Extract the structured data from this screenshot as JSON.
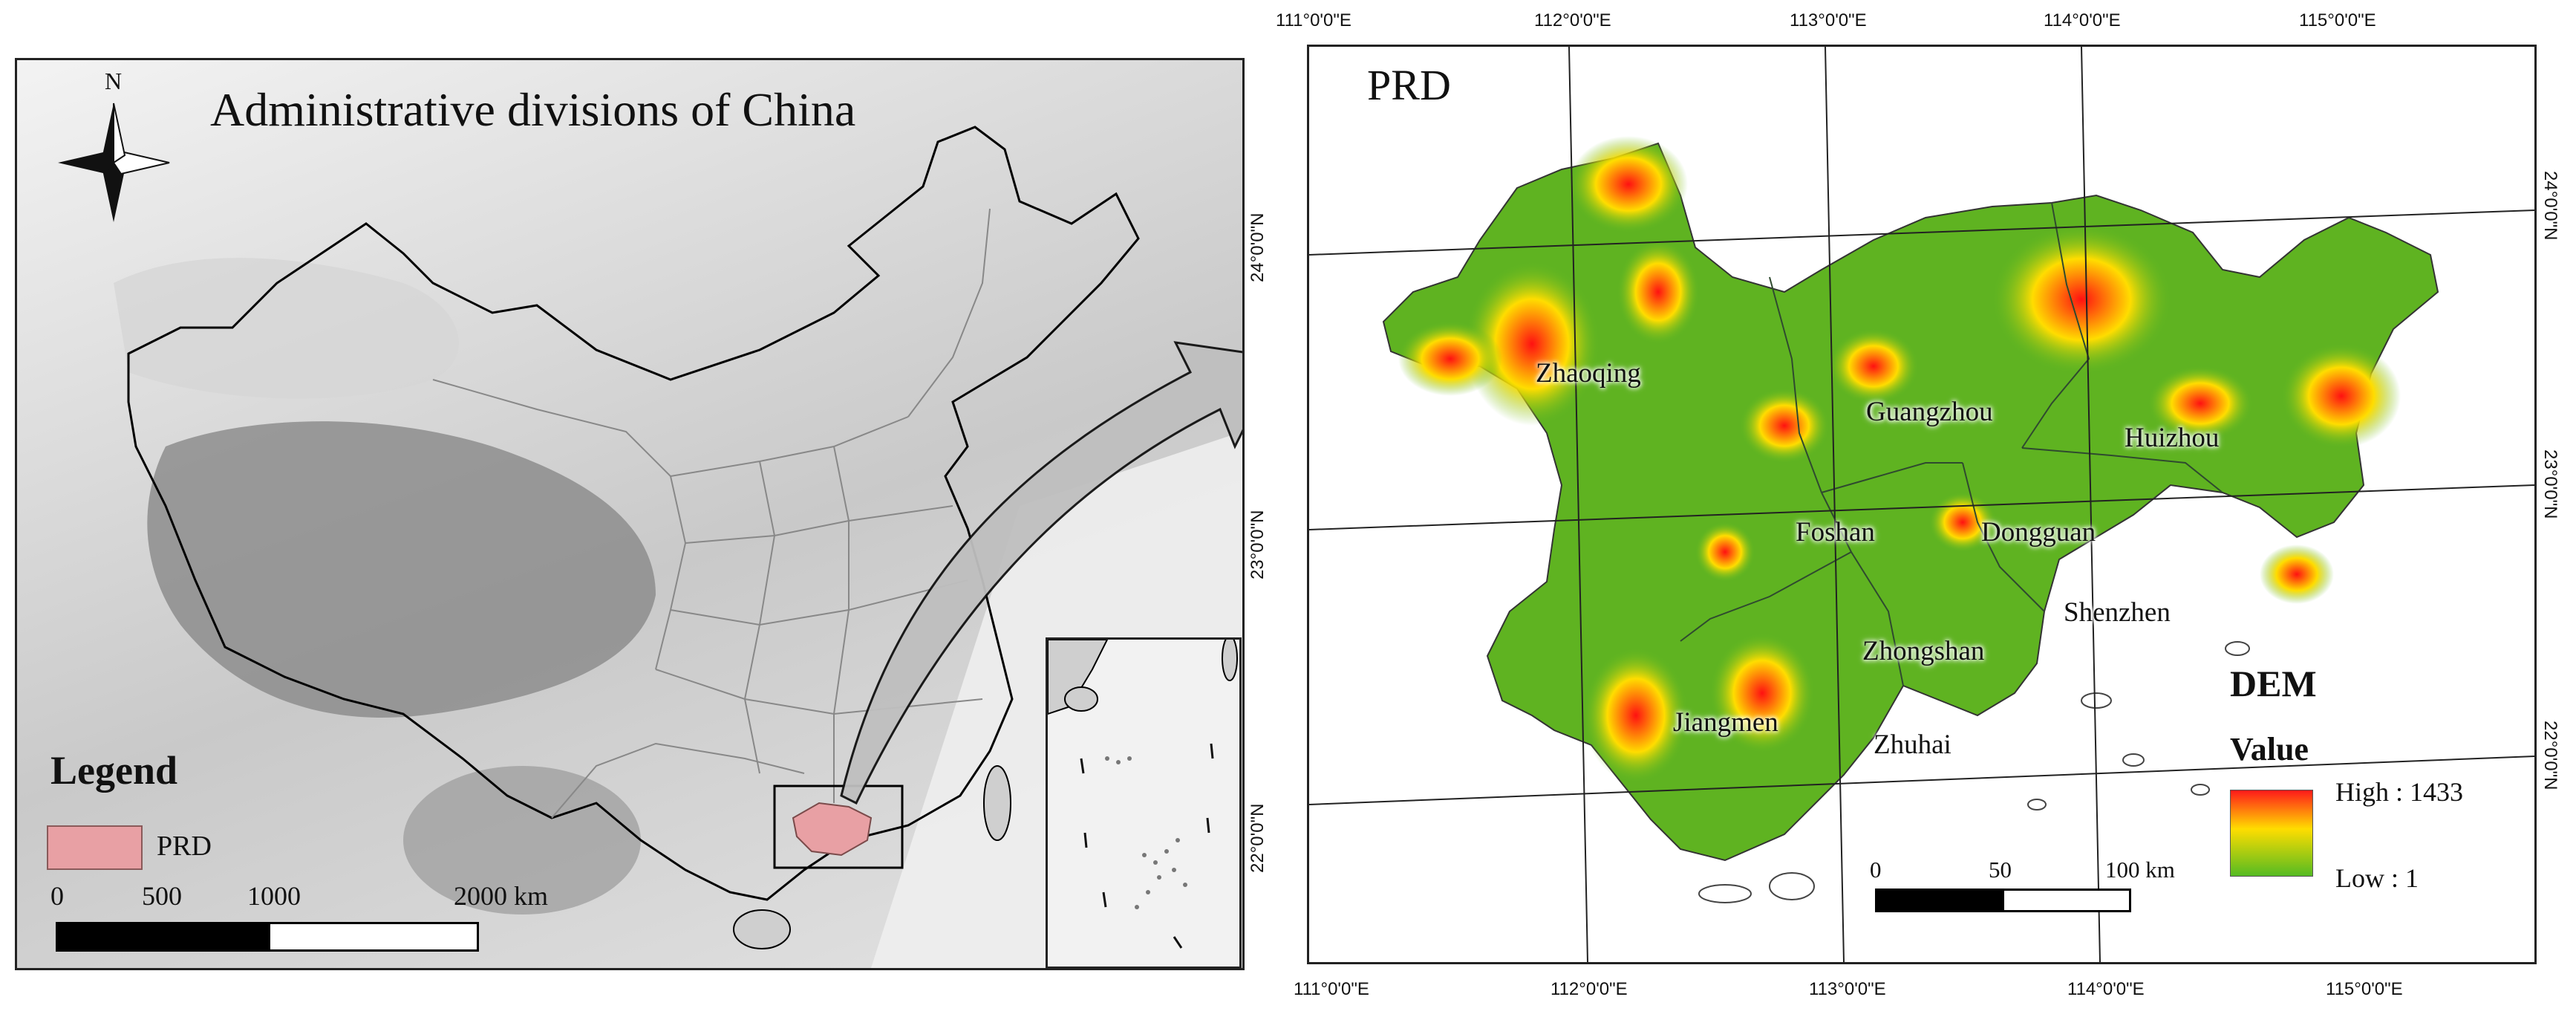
{
  "left_map": {
    "title": "Administrative divisions of China",
    "north_label": "N",
    "legend": {
      "title": "Legend",
      "item_label": "PRD",
      "item_color": "#e8a0a4"
    },
    "scale": {
      "ticks": [
        "0",
        "500",
        "1000",
        "2000 km"
      ]
    }
  },
  "right_map": {
    "title": "PRD",
    "top_longitudes": [
      "111°0'0\"E",
      "112°0'0\"E",
      "113°0'0\"E",
      "114°0'0\"E",
      "115°0'0\"E"
    ],
    "bottom_longitudes": [
      "111°0'0\"E",
      "112°0'0\"E",
      "113°0'0\"E",
      "114°0'0\"E",
      "115°0'0\"E"
    ],
    "left_latitudes": [
      "24°0'0\"N",
      "23°0'0\"N",
      "22°0'0\"N"
    ],
    "right_latitudes": [
      "24°0'0\"N",
      "23°0'0\"N",
      "22°0'0\"N"
    ],
    "cities": {
      "zhaoqing": "Zhaoqing",
      "guangzhou": "Guangzhou",
      "huizhou": "Huizhou",
      "foshan": "Foshan",
      "dongguan": "Dongguan",
      "shenzhen": "Shenzhen",
      "zhongshan": "Zhongshan",
      "jiangmen": "Jiangmen",
      "zhuhai": "Zhuhai"
    },
    "dem_legend": {
      "title": "DEM",
      "subtitle": "Value",
      "high_label": "High : 1433",
      "low_label": "Low : 1",
      "high_value": 1433,
      "low_value": 1,
      "high_color": "#ff1a1a",
      "low_color": "#55bb22"
    },
    "scale": {
      "ticks": [
        "0",
        "50",
        "100 km"
      ]
    }
  }
}
